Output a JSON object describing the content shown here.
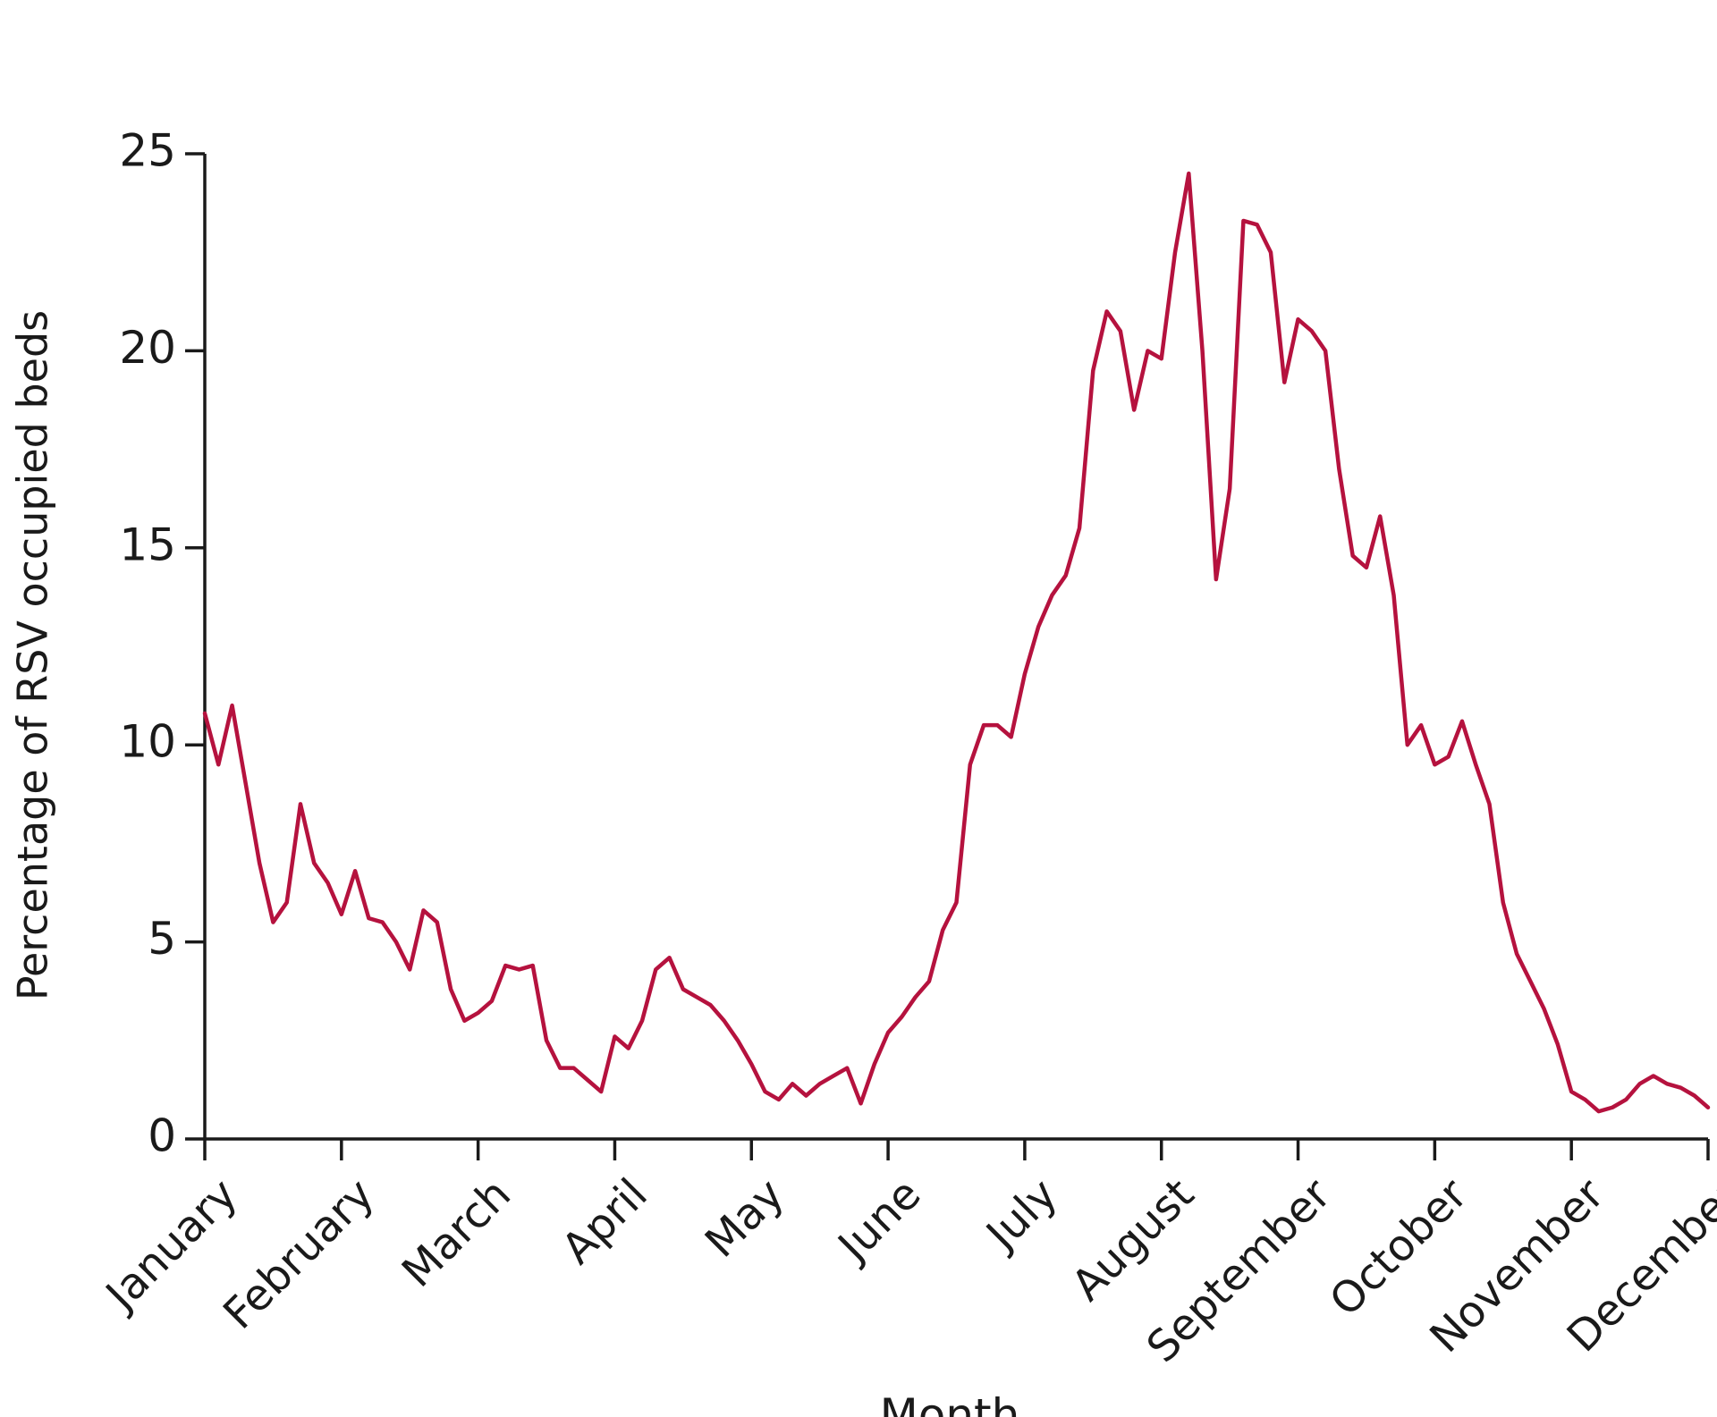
{
  "chart_data": {
    "type": "line",
    "y_label": "Percentage of RSV occupied beds",
    "x_label": "Month",
    "color": "#b5123e",
    "xlim": [
      0,
      11
    ],
    "ylim": [
      0,
      25
    ],
    "yticks": [
      0,
      5,
      10,
      15,
      20,
      25
    ],
    "xticks": [
      {
        "value": 0,
        "label": "January"
      },
      {
        "value": 1,
        "label": "February"
      },
      {
        "value": 2,
        "label": "March"
      },
      {
        "value": 3,
        "label": "April"
      },
      {
        "value": 4,
        "label": "May"
      },
      {
        "value": 5,
        "label": "June"
      },
      {
        "value": 6,
        "label": "July"
      },
      {
        "value": 7,
        "label": "August"
      },
      {
        "value": 8,
        "label": "September"
      },
      {
        "value": 9,
        "label": "October"
      },
      {
        "value": 10,
        "label": "November"
      },
      {
        "value": 11,
        "label": "December"
      }
    ],
    "x": [
      0,
      0.1,
      0.2,
      0.3,
      0.4,
      0.5,
      0.6,
      0.7,
      0.8,
      0.9,
      1,
      1.1,
      1.2,
      1.3,
      1.4,
      1.5,
      1.6,
      1.7,
      1.8,
      1.9,
      2,
      2.1,
      2.2,
      2.3,
      2.4,
      2.5,
      2.6,
      2.7,
      2.8,
      2.9,
      3,
      3.1,
      3.2,
      3.3,
      3.4,
      3.5,
      3.6,
      3.7,
      3.8,
      3.9,
      4,
      4.1,
      4.2,
      4.3,
      4.4,
      4.5,
      4.6,
      4.7,
      4.8,
      4.9,
      5,
      5.1,
      5.2,
      5.3,
      5.4,
      5.5,
      5.6,
      5.7,
      5.8,
      5.9,
      6,
      6.1,
      6.2,
      6.3,
      6.4,
      6.5,
      6.6,
      6.7,
      6.8,
      6.9,
      7,
      7.1,
      7.2,
      7.3,
      7.4,
      7.5,
      7.6,
      7.7,
      7.8,
      7.9,
      8,
      8.1,
      8.2,
      8.3,
      8.4,
      8.5,
      8.6,
      8.7,
      8.8,
      8.9,
      9,
      9.1,
      9.2,
      9.3,
      9.4,
      9.5,
      9.6,
      9.7,
      9.8,
      9.9,
      10,
      10.1,
      10.2,
      10.3,
      10.4,
      10.5,
      10.6,
      10.7,
      10.8,
      10.9,
      11
    ],
    "values": [
      10.8,
      9.5,
      11,
      9,
      7,
      5.5,
      6,
      8.5,
      7,
      6.5,
      5.7,
      6.8,
      5.6,
      5.5,
      5,
      4.3,
      5.8,
      5.5,
      3.8,
      3,
      3.2,
      3.5,
      4.4,
      4.3,
      4.4,
      2.5,
      1.8,
      1.8,
      1.5,
      1.2,
      2.6,
      2.3,
      3,
      4.3,
      4.6,
      3.8,
      3.6,
      3.4,
      3,
      2.5,
      1.9,
      1.2,
      1,
      1.4,
      1.1,
      1.4,
      1.6,
      1.8,
      0.9,
      1.9,
      2.7,
      3.1,
      3.6,
      4,
      5.3,
      6,
      9.5,
      10.5,
      10.5,
      10.2,
      11.8,
      13,
      13.8,
      14.3,
      15.5,
      19.5,
      21,
      20.5,
      18.5,
      20,
      19.8,
      22.5,
      24.5,
      20,
      14.2,
      16.5,
      23.3,
      23.2,
      22.5,
      19.2,
      20.8,
      20.5,
      20,
      17,
      14.8,
      14.5,
      15.8,
      13.8,
      10,
      10.5,
      9.5,
      9.7,
      10.6,
      9.5,
      8.5,
      6,
      4.7,
      4,
      3.3,
      2.4,
      1.2,
      1,
      0.7,
      0.8,
      1,
      1.4,
      1.6,
      1.4,
      1.3,
      1.1,
      0.8
    ]
  }
}
